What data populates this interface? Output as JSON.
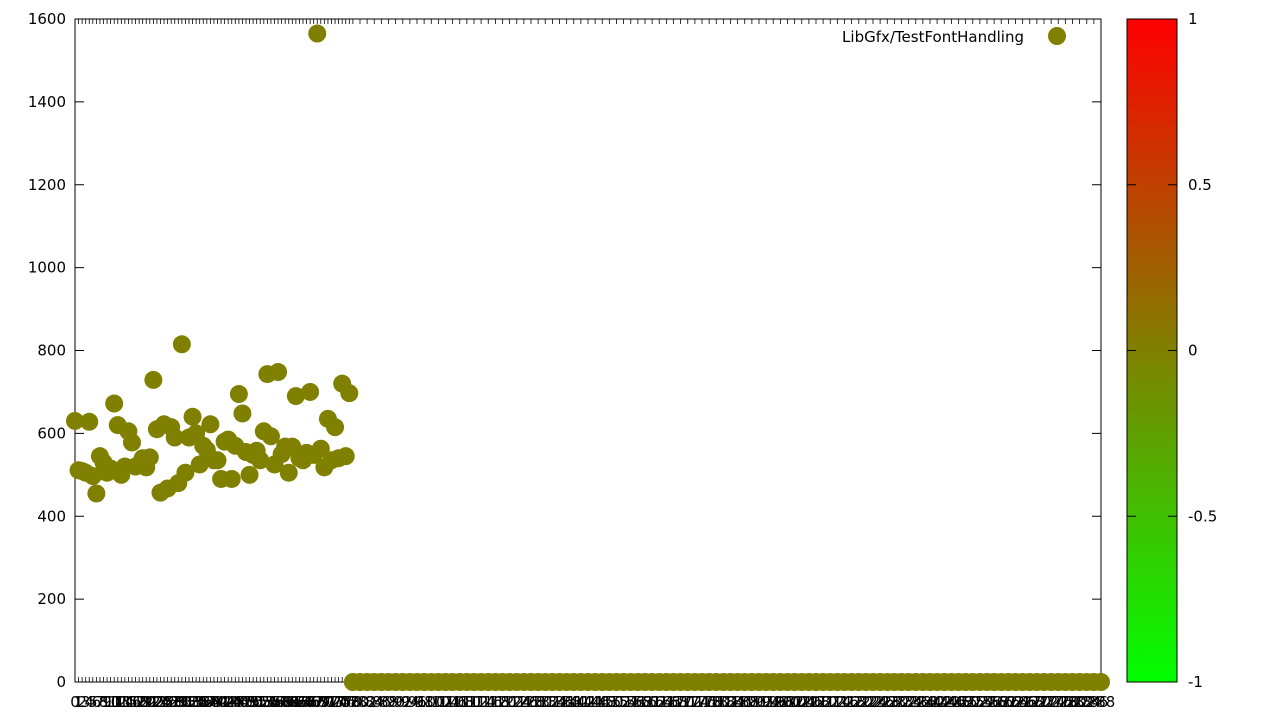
{
  "chart_data": {
    "type": "scatter",
    "title": "",
    "xlabel": "",
    "ylabel": "",
    "xlim": [
      0,
      288
    ],
    "ylim": [
      0,
      1600
    ],
    "y_ticks": [
      0,
      200,
      400,
      600,
      800,
      1000,
      1200,
      1400,
      1600
    ],
    "grid": false,
    "legend": {
      "position": "top-right"
    },
    "colorbar": {
      "ticks": [
        1,
        0.5,
        0,
        -0.5,
        -1
      ],
      "colors": {
        "top": "#ff0000",
        "middle": "#808000",
        "bottom": "#00ff00"
      }
    },
    "marker_color": "#808000",
    "series": [
      {
        "name": "LibGfx/TestFontHandling",
        "points": [
          [
            0,
            630
          ],
          [
            1,
            511
          ],
          [
            2,
            509
          ],
          [
            3,
            505
          ],
          [
            4,
            628
          ],
          [
            5,
            497
          ],
          [
            6,
            455
          ],
          [
            7,
            545
          ],
          [
            8,
            530
          ],
          [
            9,
            505
          ],
          [
            10,
            515
          ],
          [
            11,
            672
          ],
          [
            12,
            620
          ],
          [
            13,
            500
          ],
          [
            14,
            520
          ],
          [
            15,
            605
          ],
          [
            16,
            578
          ],
          [
            17,
            520
          ],
          [
            18,
            525
          ],
          [
            19,
            540
          ],
          [
            20,
            518
          ],
          [
            21,
            542
          ],
          [
            22,
            729
          ],
          [
            23,
            610
          ],
          [
            24,
            457
          ],
          [
            25,
            622
          ],
          [
            26,
            467
          ],
          [
            27,
            615
          ],
          [
            28,
            590
          ],
          [
            29,
            480
          ],
          [
            30,
            815
          ],
          [
            31,
            505
          ],
          [
            32,
            590
          ],
          [
            33,
            640
          ],
          [
            34,
            600
          ],
          [
            35,
            525
          ],
          [
            36,
            570
          ],
          [
            37,
            560
          ],
          [
            38,
            622
          ],
          [
            39,
            535
          ],
          [
            40,
            535
          ],
          [
            41,
            490
          ],
          [
            42,
            580
          ],
          [
            43,
            585
          ],
          [
            44,
            490
          ],
          [
            45,
            570
          ],
          [
            46,
            695
          ],
          [
            47,
            648
          ],
          [
            48,
            555
          ],
          [
            49,
            500
          ],
          [
            50,
            548
          ],
          [
            51,
            558
          ],
          [
            52,
            535
          ],
          [
            53,
            605
          ],
          [
            54,
            743
          ],
          [
            55,
            593
          ],
          [
            56,
            525
          ],
          [
            57,
            748
          ],
          [
            58,
            550
          ],
          [
            59,
            568
          ],
          [
            60,
            505
          ],
          [
            61,
            568
          ],
          [
            62,
            690
          ],
          [
            63,
            540
          ],
          [
            64,
            535
          ],
          [
            65,
            553
          ],
          [
            66,
            700
          ],
          [
            67,
            548
          ],
          [
            68,
            1565
          ],
          [
            69,
            563
          ],
          [
            70,
            518
          ],
          [
            71,
            635
          ],
          [
            72,
            535
          ],
          [
            73,
            615
          ],
          [
            74,
            540
          ],
          [
            75,
            720
          ],
          [
            76,
            545
          ],
          [
            77,
            697
          ],
          [
            78,
            0
          ],
          [
            80,
            0
          ],
          [
            82,
            0
          ],
          [
            84,
            0
          ],
          [
            86,
            0
          ],
          [
            88,
            0
          ],
          [
            90,
            0
          ],
          [
            92,
            0
          ],
          [
            94,
            0
          ],
          [
            96,
            0
          ],
          [
            98,
            0
          ],
          [
            100,
            0
          ],
          [
            102,
            0
          ],
          [
            104,
            0
          ],
          [
            106,
            0
          ],
          [
            108,
            0
          ],
          [
            110,
            0
          ],
          [
            112,
            0
          ],
          [
            114,
            0
          ],
          [
            116,
            0
          ],
          [
            118,
            0
          ],
          [
            120,
            0
          ],
          [
            122,
            0
          ],
          [
            124,
            0
          ],
          [
            126,
            0
          ],
          [
            128,
            0
          ],
          [
            130,
            0
          ],
          [
            132,
            0
          ],
          [
            134,
            0
          ],
          [
            136,
            0
          ],
          [
            138,
            0
          ],
          [
            140,
            0
          ],
          [
            142,
            0
          ],
          [
            144,
            0
          ],
          [
            146,
            0
          ],
          [
            148,
            0
          ],
          [
            150,
            0
          ],
          [
            152,
            0
          ],
          [
            154,
            0
          ],
          [
            156,
            0
          ],
          [
            158,
            0
          ],
          [
            160,
            0
          ],
          [
            162,
            0
          ],
          [
            164,
            0
          ],
          [
            166,
            0
          ],
          [
            168,
            0
          ],
          [
            170,
            0
          ],
          [
            172,
            0
          ],
          [
            174,
            0
          ],
          [
            176,
            0
          ],
          [
            178,
            0
          ],
          [
            180,
            0
          ],
          [
            182,
            0
          ],
          [
            184,
            0
          ],
          [
            186,
            0
          ],
          [
            188,
            0
          ],
          [
            190,
            0
          ],
          [
            192,
            0
          ],
          [
            194,
            0
          ],
          [
            196,
            0
          ],
          [
            198,
            0
          ],
          [
            200,
            0
          ],
          [
            202,
            0
          ],
          [
            204,
            0
          ],
          [
            206,
            0
          ],
          [
            208,
            0
          ],
          [
            210,
            0
          ],
          [
            212,
            0
          ],
          [
            214,
            0
          ],
          [
            216,
            0
          ],
          [
            218,
            0
          ],
          [
            220,
            0
          ],
          [
            222,
            0
          ],
          [
            224,
            0
          ],
          [
            226,
            0
          ],
          [
            228,
            0
          ],
          [
            230,
            0
          ],
          [
            232,
            0
          ],
          [
            234,
            0
          ],
          [
            236,
            0
          ],
          [
            238,
            0
          ],
          [
            240,
            0
          ],
          [
            242,
            0
          ],
          [
            244,
            0
          ],
          [
            246,
            0
          ],
          [
            248,
            0
          ],
          [
            250,
            0
          ],
          [
            252,
            0
          ],
          [
            254,
            0
          ],
          [
            256,
            0
          ],
          [
            258,
            0
          ],
          [
            260,
            0
          ],
          [
            262,
            0
          ],
          [
            264,
            0
          ],
          [
            266,
            0
          ],
          [
            268,
            0
          ],
          [
            270,
            0
          ],
          [
            272,
            0
          ],
          [
            274,
            0
          ],
          [
            276,
            0
          ],
          [
            278,
            0
          ],
          [
            280,
            0
          ],
          [
            282,
            0
          ],
          [
            284,
            0
          ],
          [
            286,
            0
          ],
          [
            288,
            0
          ]
        ]
      }
    ]
  }
}
